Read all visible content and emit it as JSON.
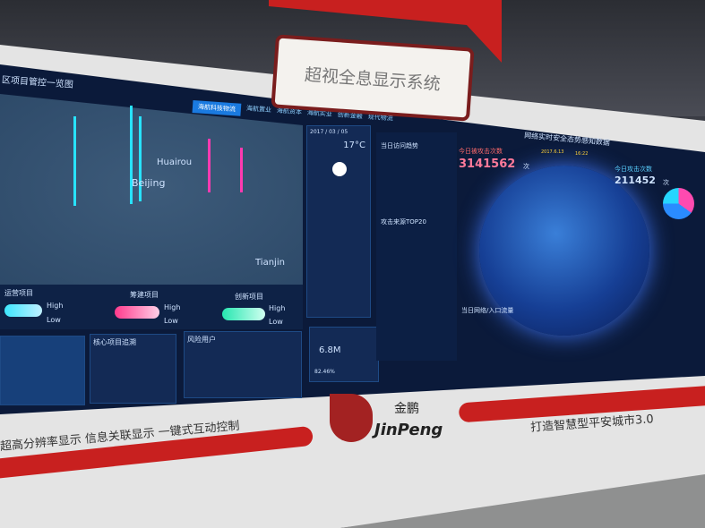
{
  "sign": {
    "title": "超视全息显示系统"
  },
  "left": {
    "title": "区项目管控一览图",
    "tabs": [
      "海航科技物流",
      "海航置业",
      "海航资本",
      "海航实业",
      "创新金融",
      "现代物流"
    ],
    "map_labels": [
      "Huairou",
      "Beijing",
      "Tianjin"
    ],
    "legends": [
      {
        "label": "运营项目",
        "high": "High",
        "low": "Low"
      },
      {
        "label": "筹建项目",
        "high": "High",
        "low": "Low"
      },
      {
        "label": "创新项目",
        "high": "High",
        "low": "Low"
      }
    ],
    "bottom_panels": [
      "核心项目追溯",
      "风险用户"
    ]
  },
  "middle": {
    "date": "2017 / 03 / 05",
    "temp": "17°C",
    "metric": "6.8M",
    "percent": "82.46%"
  },
  "right": {
    "title": "网络实时安全态势感知数据",
    "date": "2017.6.13",
    "time": "16:22",
    "attacked_label": "今日被攻击次数",
    "attacked_value": "3141562",
    "attacked_unit": "次",
    "attack_label": "今日攻击次数",
    "attack_value": "211452",
    "attack_unit": "次",
    "trend_label": "当日访问趋势",
    "top20_label": "攻击来源TOP20",
    "traffic_label": "当日网络/入口流量"
  },
  "banner": {
    "left_slogan": "超高分辨率显示  信息关联显示  一键式互动控制",
    "brand_cn": "金鹏",
    "brand_en": "JinPeng",
    "right_slogan": "打造智慧型平安城市3.0"
  },
  "colors": {
    "brand_red": "#c8201f",
    "screen_bg": "#0b1a3a",
    "accent_cyan": "#28e3ff",
    "accent_pink": "#ff3ab0"
  }
}
